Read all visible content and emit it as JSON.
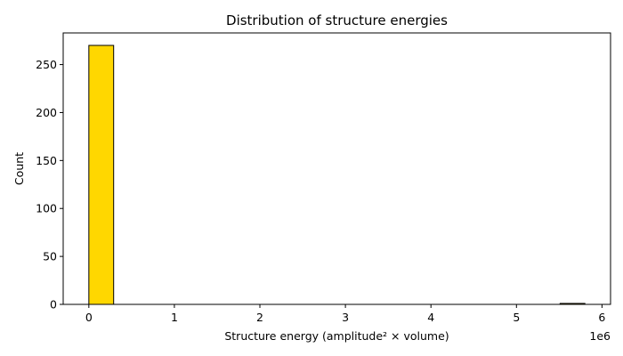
{
  "chart_data": {
    "type": "bar",
    "title": "Distribution of structure energies",
    "xlabel": "Structure energy (amplitude² × volume)",
    "ylabel": "Count",
    "x_offset_label": "1e6",
    "x_scale": 1000000,
    "xlim": [
      -300000,
      6100000
    ],
    "ylim": [
      0,
      283
    ],
    "x_ticks": [
      0,
      1000000,
      2000000,
      3000000,
      4000000,
      5000000,
      6000000
    ],
    "x_tick_labels": [
      "0",
      "1",
      "2",
      "3",
      "4",
      "5",
      "6"
    ],
    "y_ticks": [
      0,
      50,
      100,
      150,
      200,
      250
    ],
    "y_tick_labels": [
      "0",
      "50",
      "100",
      "150",
      "200",
      "250"
    ],
    "bin_edges": [
      0,
      290000,
      580000,
      870000,
      1160000,
      1450000,
      1740000,
      2030000,
      2320000,
      2610000,
      2900000,
      3190000,
      3480000,
      3770000,
      4060000,
      4350000,
      4640000,
      4930000,
      5220000,
      5510000,
      5800000
    ],
    "counts": [
      270,
      0,
      0,
      0,
      0,
      0,
      0,
      0,
      0,
      0,
      0,
      0,
      0,
      0,
      0,
      0,
      0,
      0,
      0,
      1
    ],
    "bar_color": "#FFD700",
    "edge_color": "#000000",
    "grid": false,
    "legend": "none"
  }
}
